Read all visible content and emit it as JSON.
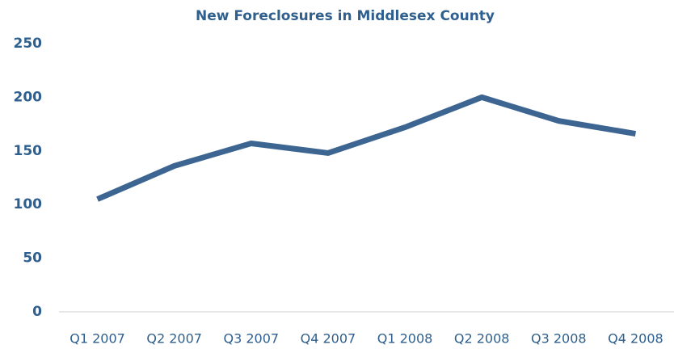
{
  "chart_data": {
    "type": "line",
    "title": "New Foreclosures in Middlesex County",
    "categories": [
      "Q1 2007",
      "Q2 2007",
      "Q3 2007",
      "Q4 2007",
      "Q1 2008",
      "Q2 2008",
      "Q3 2008",
      "Q4 2008"
    ],
    "values": [
      105,
      136,
      157,
      148,
      172,
      200,
      178,
      166
    ],
    "color": "#3d6591",
    "ylim": [
      0,
      250
    ],
    "yticks": [
      0,
      50,
      100,
      150,
      200,
      250
    ],
    "grid": false
  }
}
